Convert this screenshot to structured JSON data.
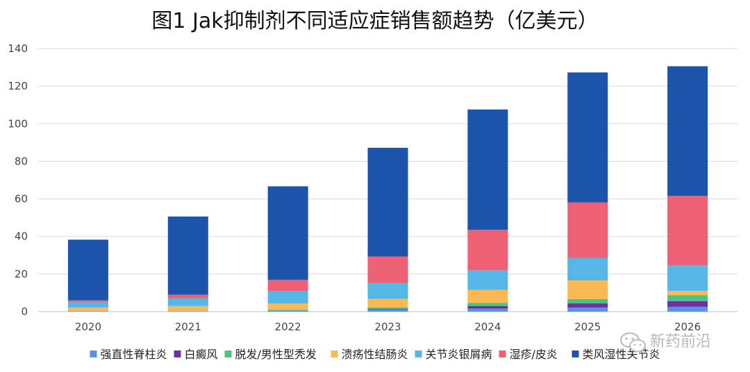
{
  "chart_data": {
    "type": "bar",
    "stacked": true,
    "title": "图1  Jak抑制剂不同适应症销售额趋势（亿美元）",
    "xlabel": "",
    "ylabel": "",
    "ylim": [
      0,
      140
    ],
    "yticks": [
      "0",
      "20",
      "40",
      "60",
      "80",
      "100",
      "120",
      "140"
    ],
    "grid": true,
    "legend_position": "bottom",
    "categories": [
      "2020",
      "2021",
      "2022",
      "2023",
      "2024",
      "2025",
      "2026"
    ],
    "series": [
      {
        "name": "强直性脊柱炎",
        "color": "#5b8fe8",
        "values": [
          0.2,
          0.2,
          0.5,
          1.2,
          1.6,
          2.2,
          2.6
        ]
      },
      {
        "name": "白癜风",
        "color": "#7030a0",
        "values": [
          0,
          0,
          0,
          0.3,
          1.4,
          2.2,
          3.0
        ]
      },
      {
        "name": "脱发/男性型秃发",
        "color": "#4ec27f",
        "values": [
          0,
          0,
          0.5,
          0.8,
          1.6,
          2.3,
          3.2
        ]
      },
      {
        "name": "溃疡性结肠炎",
        "color": "#fbb954",
        "values": [
          2.0,
          2.8,
          3.3,
          4.5,
          7.0,
          9.9,
          2.3
        ]
      },
      {
        "name": "关节炎银屑病",
        "color": "#56b6e5",
        "values": [
          3.0,
          4.2,
          6.5,
          8.5,
          10.5,
          12.0,
          13.5
        ]
      },
      {
        "name": "湿疹/皮炎",
        "color": "#ee6074",
        "values": [
          0.8,
          1.8,
          6.2,
          14.0,
          21.5,
          29.5,
          37.0
        ]
      },
      {
        "name": "类风湿性关节炎",
        "color": "#1c53ab",
        "values": [
          32.3,
          41.6,
          49.7,
          57.9,
          64.0,
          69.2,
          69.0
        ]
      }
    ]
  },
  "watermark": {
    "text": "新药前沿"
  }
}
